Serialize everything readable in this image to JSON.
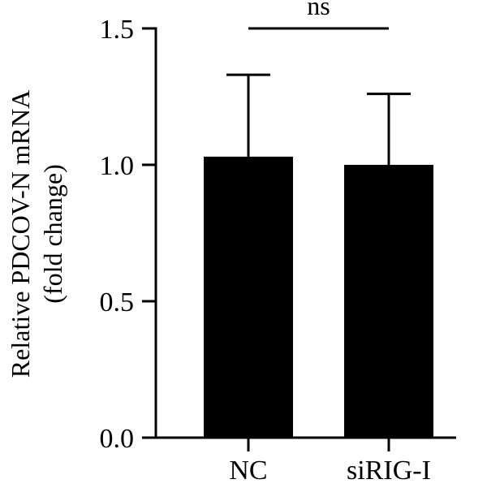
{
  "chart_data": {
    "type": "bar",
    "title": "",
    "xlabel": "",
    "ylabel_lines": [
      "Relative PDCOV-N mRNA",
      "(fold change)"
    ],
    "categories": [
      "NC",
      "siRIG-I"
    ],
    "values": [
      1.03,
      1.0
    ],
    "error_upper": [
      0.3,
      0.26
    ],
    "ylim": [
      0,
      1.5
    ],
    "yticks": [
      0.0,
      0.5,
      1.0,
      1.5
    ],
    "ytick_labels": [
      "0.0",
      "0.5",
      "1.0",
      "1.5"
    ],
    "grid": false,
    "legend": "none",
    "bar_color": "#000000",
    "significance": {
      "pair": [
        "NC",
        "siRIG-I"
      ],
      "label": "ns"
    }
  }
}
